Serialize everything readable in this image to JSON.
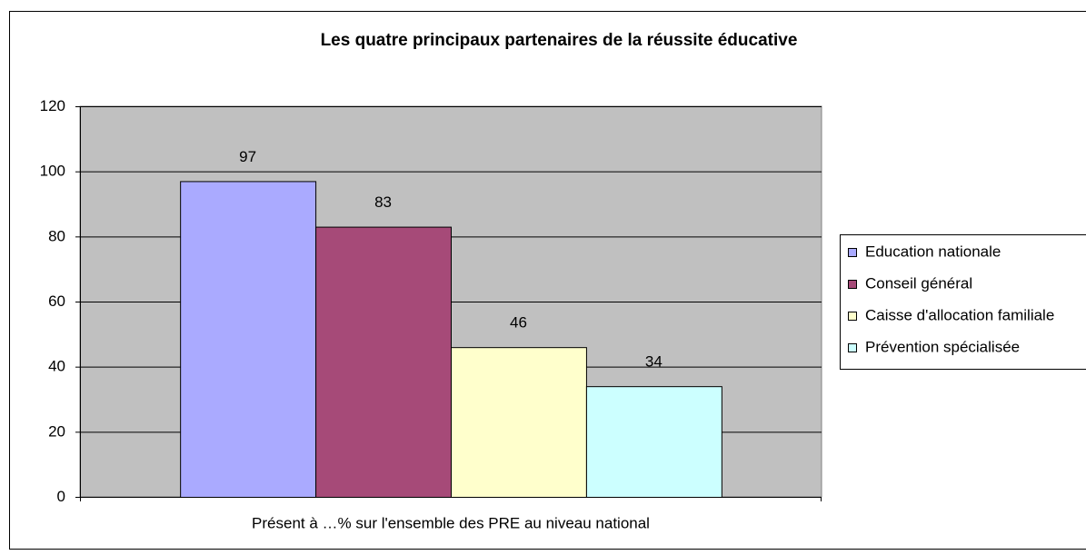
{
  "chart_data": {
    "type": "bar",
    "title": "Les quatre principaux partenaires de la réussite éducative",
    "categories": [
      "Présent à …% sur l'ensemble des PRE au niveau national"
    ],
    "series": [
      {
        "name": "Education nationale",
        "color": "#aaaaff",
        "values": [
          97
        ]
      },
      {
        "name": "Conseil général",
        "color": "#a64a78",
        "values": [
          83
        ]
      },
      {
        "name": "Caisse d'allocation familiale",
        "color": "#ffffcc",
        "values": [
          46
        ]
      },
      {
        "name": "Prévention spécialisée",
        "color": "#ccffff",
        "values": [
          34
        ]
      }
    ],
    "ylim": [
      0,
      120
    ],
    "yticks": [
      0,
      20,
      40,
      60,
      80,
      100,
      120
    ],
    "grid": true,
    "legend": "right",
    "plot_background": "#c0c0c0"
  }
}
